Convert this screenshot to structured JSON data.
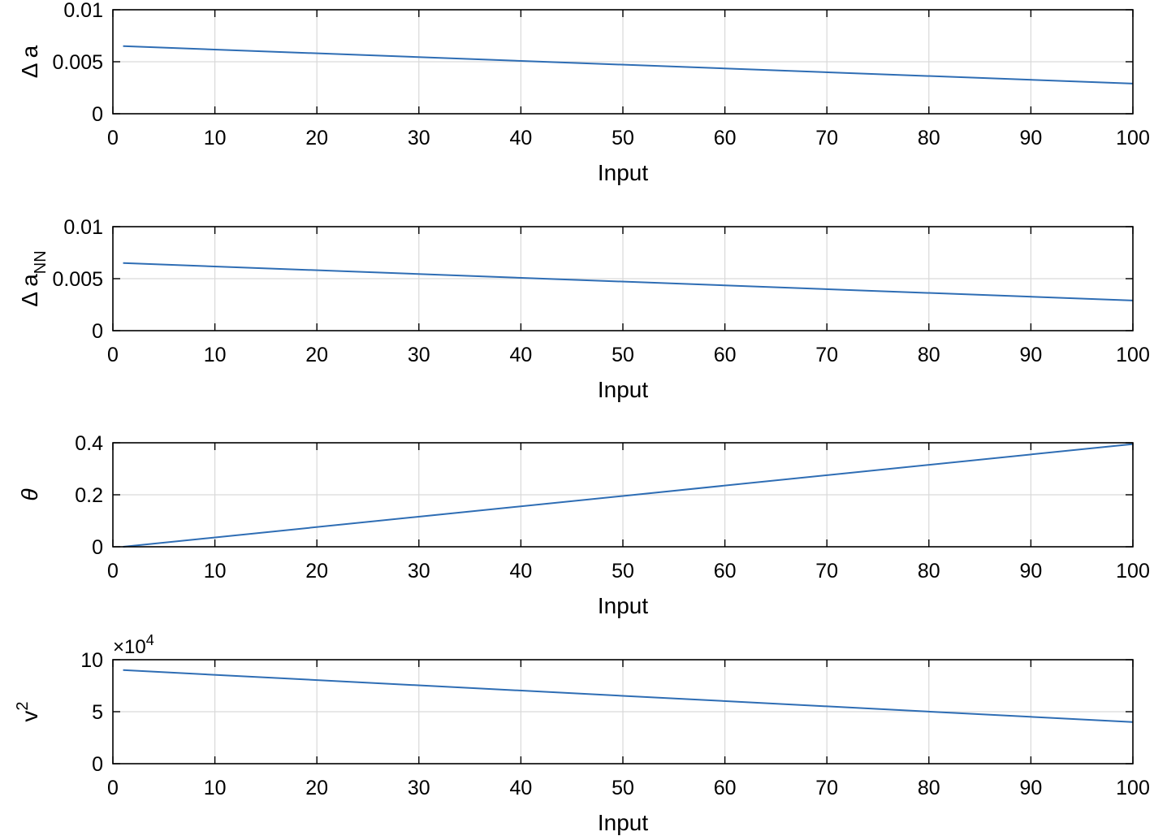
{
  "chart_data": [
    {
      "type": "line",
      "xlabel": "Input",
      "ylabel": {
        "base": "Δ a",
        "sub": "",
        "sup": "",
        "italic": false
      },
      "xlim": [
        0,
        100
      ],
      "ylim": [
        0,
        0.01
      ],
      "xticks": [
        0,
        10,
        20,
        30,
        40,
        50,
        60,
        70,
        80,
        90,
        100
      ],
      "yticks": [
        0,
        0.005,
        0.01
      ],
      "ytick_labels": [
        "0",
        "0.005",
        "0.01"
      ],
      "grid": true,
      "exponent_label": "",
      "series": [
        {
          "x": [
            1,
            100
          ],
          "y": [
            0.0065,
            0.0029
          ],
          "color": "#2e6db4"
        }
      ]
    },
    {
      "type": "line",
      "xlabel": "Input",
      "ylabel": {
        "base": "Δ a",
        "sub": "NN",
        "sup": "",
        "italic": false
      },
      "xlim": [
        0,
        100
      ],
      "ylim": [
        0,
        0.01
      ],
      "xticks": [
        0,
        10,
        20,
        30,
        40,
        50,
        60,
        70,
        80,
        90,
        100
      ],
      "yticks": [
        0,
        0.005,
        0.01
      ],
      "ytick_labels": [
        "0",
        "0.005",
        "0.01"
      ],
      "grid": true,
      "exponent_label": "",
      "series": [
        {
          "x": [
            1,
            100
          ],
          "y": [
            0.0065,
            0.0029
          ],
          "color": "#2e6db4"
        }
      ]
    },
    {
      "type": "line",
      "xlabel": "Input",
      "ylabel": {
        "base": "θ",
        "sub": "",
        "sup": "",
        "italic": true
      },
      "xlim": [
        0,
        100
      ],
      "ylim": [
        0,
        0.4
      ],
      "xticks": [
        0,
        10,
        20,
        30,
        40,
        50,
        60,
        70,
        80,
        90,
        100
      ],
      "yticks": [
        0,
        0.2,
        0.4
      ],
      "ytick_labels": [
        "0",
        "0.2",
        "0.4"
      ],
      "grid": true,
      "exponent_label": "",
      "series": [
        {
          "x": [
            1,
            100
          ],
          "y": [
            0,
            0.395
          ],
          "color": "#2e6db4"
        }
      ]
    },
    {
      "type": "line",
      "xlabel": "Input",
      "ylabel": {
        "base": "v",
        "sub": "",
        "sup": "2",
        "italic": false
      },
      "xlim": [
        0,
        100
      ],
      "ylim": [
        0,
        100000
      ],
      "xticks": [
        0,
        10,
        20,
        30,
        40,
        50,
        60,
        70,
        80,
        90,
        100
      ],
      "yticks": [
        0,
        50000,
        100000
      ],
      "ytick_labels": [
        "0",
        "5",
        "10"
      ],
      "grid": true,
      "exponent_label": {
        "base": "×10",
        "sup": "4"
      },
      "series": [
        {
          "x": [
            1,
            100
          ],
          "y": [
            90000,
            40000
          ],
          "color": "#2e6db4"
        }
      ]
    }
  ]
}
